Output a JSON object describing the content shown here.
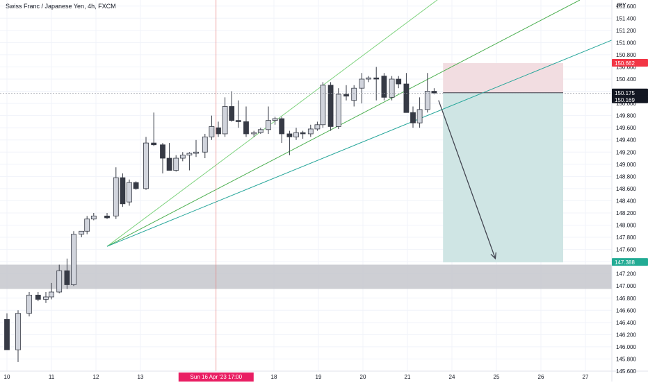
{
  "header": {
    "title": "Swiss Franc / Japanese Yen, 4h, FXCM"
  },
  "colors": {
    "bg": "#ffffff",
    "grid": "#f0f3fa",
    "candle_up_fill": "#d1d4dc",
    "candle_down_fill": "#363a45",
    "candle_stroke": "#363a45",
    "support_zone": "#c5c7cc",
    "stop_zone": "#f2dde1",
    "target_zone": "#cfe5e4",
    "fan_line_light": "#7fd37f",
    "fan_line_mid": "#4caf50",
    "fan_line_teal": "#26a69a",
    "arrow": "#434651",
    "crosshair": "#e57373",
    "stop_badge": "#f23645",
    "price_badge": "#131722",
    "target_badge": "#22ab94",
    "date_badge": "#e91e63"
  },
  "price_axis": {
    "currency": "JPY",
    "labels": [
      "151.600",
      "151.400",
      "151.200",
      "151.000",
      "150.800",
      "150.600",
      "150.400",
      "150.200",
      "150.000",
      "149.800",
      "149.600",
      "149.400",
      "149.200",
      "149.000",
      "148.800",
      "148.600",
      "148.400",
      "148.200",
      "148.000",
      "147.800",
      "147.600",
      "147.400",
      "147.200",
      "147.000",
      "146.800",
      "146.600",
      "146.400",
      "146.200",
      "146.000",
      "145.800",
      "145.600"
    ],
    "badges": {
      "stop_price": "150.662",
      "last_price": "150.175",
      "crosshair_price": "150.169",
      "target_price": "147.388"
    }
  },
  "time_axis": {
    "labels": [
      "10",
      "11",
      "12",
      "13",
      "18",
      "19",
      "20",
      "21",
      "24",
      "25",
      "26",
      "27"
    ],
    "crosshair_label": "Sun 16 Apr '23   17:00"
  },
  "chart_data": {
    "type": "candlestick",
    "symbol": "CHFJPY",
    "timeframe": "4h",
    "ylim": [
      145.6,
      151.7
    ],
    "x_index_range": [
      0,
      52
    ],
    "axis_ticks_index": {
      "10": 0,
      "11": 4,
      "12": 8,
      "13": 12,
      "18": 24,
      "19": 28,
      "20": 32,
      "21": 36,
      "24": 40,
      "25": 44,
      "26": 48,
      "27": 52
    },
    "candles": [
      {
        "i": 0.0,
        "o": 146.45,
        "h": 146.55,
        "l": 145.95,
        "c": 145.95
      },
      {
        "i": 1.0,
        "o": 145.95,
        "h": 146.6,
        "l": 145.75,
        "c": 146.55
      },
      {
        "i": 2.0,
        "o": 146.55,
        "h": 146.9,
        "l": 146.5,
        "c": 146.85
      },
      {
        "i": 2.8,
        "o": 146.85,
        "h": 146.9,
        "l": 146.75,
        "c": 146.78
      },
      {
        "i": 3.5,
        "o": 146.78,
        "h": 146.9,
        "l": 146.72,
        "c": 146.82
      },
      {
        "i": 4.0,
        "o": 146.82,
        "h": 147.05,
        "l": 146.78,
        "c": 146.9
      },
      {
        "i": 4.7,
        "o": 146.9,
        "h": 147.35,
        "l": 146.88,
        "c": 147.25
      },
      {
        "i": 5.4,
        "o": 147.25,
        "h": 147.45,
        "l": 146.95,
        "c": 147.02
      },
      {
        "i": 6.0,
        "o": 147.02,
        "h": 147.9,
        "l": 147.0,
        "c": 147.85
      },
      {
        "i": 6.7,
        "o": 147.85,
        "h": 147.9,
        "l": 147.8,
        "c": 147.9
      },
      {
        "i": 7.2,
        "o": 147.9,
        "h": 148.15,
        "l": 147.85,
        "c": 148.1
      },
      {
        "i": 7.8,
        "o": 148.1,
        "h": 148.2,
        "l": 148.08,
        "c": 148.15
      },
      {
        "i": 9.0,
        "o": 148.15,
        "h": 148.2,
        "l": 148.1,
        "c": 148.12
      },
      {
        "i": 9.8,
        "o": 148.15,
        "h": 148.95,
        "l": 148.1,
        "c": 148.78
      },
      {
        "i": 10.4,
        "o": 148.78,
        "h": 148.85,
        "l": 148.3,
        "c": 148.35
      },
      {
        "i": 11.0,
        "o": 148.38,
        "h": 148.75,
        "l": 148.32,
        "c": 148.7
      },
      {
        "i": 11.6,
        "o": 148.7,
        "h": 148.72,
        "l": 148.58,
        "c": 148.6
      },
      {
        "i": 12.5,
        "o": 148.6,
        "h": 149.45,
        "l": 148.58,
        "c": 149.35
      },
      {
        "i": 13.2,
        "o": 149.35,
        "h": 149.85,
        "l": 149.3,
        "c": 149.32
      },
      {
        "i": 14.0,
        "o": 149.32,
        "h": 149.35,
        "l": 148.85,
        "c": 149.1
      },
      {
        "i": 14.6,
        "o": 149.1,
        "h": 149.35,
        "l": 148.9,
        "c": 148.9
      },
      {
        "i": 15.2,
        "o": 148.9,
        "h": 149.15,
        "l": 148.88,
        "c": 149.1
      },
      {
        "i": 15.8,
        "o": 149.1,
        "h": 149.2,
        "l": 149.05,
        "c": 149.15
      },
      {
        "i": 16.4,
        "o": 149.15,
        "h": 149.2,
        "l": 148.9,
        "c": 149.18
      },
      {
        "i": 17.0,
        "o": 149.18,
        "h": 149.4,
        "l": 149.12,
        "c": 149.2
      },
      {
        "i": 17.8,
        "o": 149.2,
        "h": 149.5,
        "l": 149.1,
        "c": 149.45
      },
      {
        "i": 18.4,
        "o": 149.45,
        "h": 149.8,
        "l": 149.4,
        "c": 149.62
      },
      {
        "i": 19.0,
        "o": 149.6,
        "h": 149.7,
        "l": 149.45,
        "c": 149.5
      },
      {
        "i": 19.6,
        "o": 149.5,
        "h": 150.1,
        "l": 149.45,
        "c": 149.95
      },
      {
        "i": 20.2,
        "o": 149.95,
        "h": 150.2,
        "l": 149.7,
        "c": 149.72
      },
      {
        "i": 20.8,
        "o": 149.72,
        "h": 150.05,
        "l": 149.6,
        "c": 149.7
      },
      {
        "i": 21.5,
        "o": 149.7,
        "h": 149.95,
        "l": 149.45,
        "c": 149.5
      },
      {
        "i": 22.2,
        "o": 149.5,
        "h": 149.55,
        "l": 149.45,
        "c": 149.52
      },
      {
        "i": 22.8,
        "o": 149.52,
        "h": 149.6,
        "l": 149.5,
        "c": 149.57
      },
      {
        "i": 23.5,
        "o": 149.57,
        "h": 149.95,
        "l": 149.5,
        "c": 149.72
      },
      {
        "i": 24.1,
        "o": 149.72,
        "h": 149.78,
        "l": 149.65,
        "c": 149.75
      },
      {
        "i": 24.7,
        "o": 149.75,
        "h": 149.78,
        "l": 149.35,
        "c": 149.5
      },
      {
        "i": 25.4,
        "o": 149.5,
        "h": 149.55,
        "l": 149.15,
        "c": 149.45
      },
      {
        "i": 26.0,
        "o": 149.45,
        "h": 149.6,
        "l": 149.4,
        "c": 149.52
      },
      {
        "i": 26.6,
        "o": 149.52,
        "h": 149.55,
        "l": 149.42,
        "c": 149.5
      },
      {
        "i": 27.3,
        "o": 149.5,
        "h": 149.65,
        "l": 149.45,
        "c": 149.58
      },
      {
        "i": 27.9,
        "o": 149.58,
        "h": 149.7,
        "l": 149.55,
        "c": 149.65
      },
      {
        "i": 28.4,
        "o": 149.65,
        "h": 150.35,
        "l": 149.6,
        "c": 150.3
      },
      {
        "i": 29.1,
        "o": 150.3,
        "h": 150.35,
        "l": 149.55,
        "c": 149.62
      },
      {
        "i": 29.8,
        "o": 149.62,
        "h": 150.25,
        "l": 149.58,
        "c": 150.15
      },
      {
        "i": 30.5,
        "o": 150.15,
        "h": 150.3,
        "l": 150.05,
        "c": 150.12
      },
      {
        "i": 31.2,
        "o": 150.05,
        "h": 150.3,
        "l": 149.95,
        "c": 150.25
      },
      {
        "i": 31.9,
        "o": 150.25,
        "h": 150.5,
        "l": 150.0,
        "c": 150.4
      },
      {
        "i": 32.5,
        "o": 150.4,
        "h": 150.45,
        "l": 150.35,
        "c": 150.42
      },
      {
        "i": 33.2,
        "o": 150.42,
        "h": 150.6,
        "l": 150.05,
        "c": 150.4
      },
      {
        "i": 33.9,
        "o": 150.45,
        "h": 150.5,
        "l": 150.05,
        "c": 150.1
      },
      {
        "i": 34.6,
        "o": 150.1,
        "h": 150.45,
        "l": 150.05,
        "c": 150.4
      },
      {
        "i": 35.2,
        "o": 150.4,
        "h": 150.45,
        "l": 150.25,
        "c": 150.32
      },
      {
        "i": 35.9,
        "o": 150.32,
        "h": 150.5,
        "l": 149.85,
        "c": 149.85
      },
      {
        "i": 36.5,
        "o": 149.85,
        "h": 149.95,
        "l": 149.6,
        "c": 149.68
      },
      {
        "i": 37.1,
        "o": 149.68,
        "h": 150.1,
        "l": 149.6,
        "c": 149.9
      },
      {
        "i": 37.8,
        "o": 149.9,
        "h": 150.5,
        "l": 149.85,
        "c": 150.2
      },
      {
        "i": 38.4,
        "o": 150.2,
        "h": 150.25,
        "l": 150.15,
        "c": 150.17
      }
    ],
    "fan_lines": [
      {
        "from": {
          "i": 9.0,
          "p": 147.65
        },
        "to": {
          "i": 46.0,
          "p": 152.7
        },
        "color": "fan_line_light"
      },
      {
        "from": {
          "i": 9.0,
          "p": 147.65
        },
        "to": {
          "i": 51.5,
          "p": 151.7
        },
        "color": "fan_line_mid"
      },
      {
        "from": {
          "i": 9.0,
          "p": 147.65
        },
        "to": {
          "i": 54.5,
          "p": 151.05
        },
        "color": "fan_line_teal"
      }
    ],
    "support_zone": {
      "from_price": 146.95,
      "to_price": 147.35
    },
    "short_position": {
      "entry": 150.175,
      "stop": 150.662,
      "target": 147.388,
      "from_index": 39.2,
      "to_index": 50.0
    },
    "forecast_arrow": {
      "from": {
        "i": 38.8,
        "p": 150.05
      },
      "to": {
        "i": 43.9,
        "p": 147.45
      }
    },
    "crosshair": {
      "index": 18.8,
      "price": 150.169
    }
  }
}
